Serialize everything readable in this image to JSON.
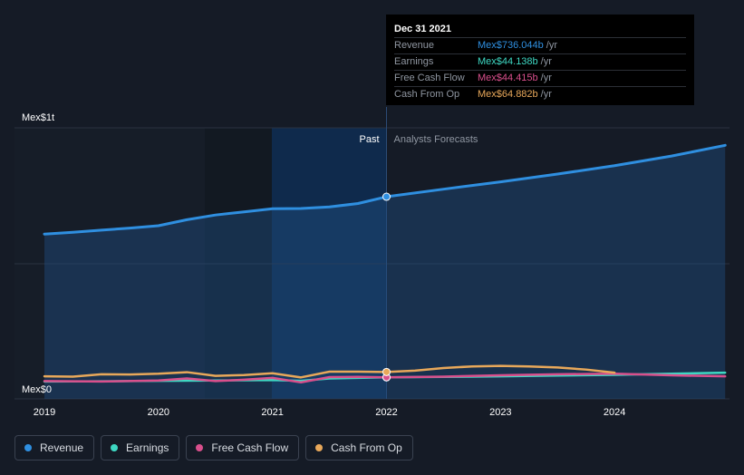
{
  "chart_data": {
    "type": "line",
    "y_top_label": "Mex$1t",
    "y_bottom_label": "Mex$0",
    "past_label": "Past",
    "forecast_label": "Analysts Forecasts",
    "x_ticks": [
      "2019",
      "2020",
      "2021",
      "2022",
      "2023",
      "2024"
    ],
    "ylim": [
      0,
      1000
    ],
    "xlim": [
      2019,
      2024.97
    ],
    "divider_x": 2022.0,
    "series": [
      {
        "name": "Revenue",
        "color": "#2f8fe0",
        "x": [
          2019.0,
          2019.25,
          2019.5,
          2019.75,
          2020.0,
          2020.25,
          2020.5,
          2020.75,
          2021.0,
          2021.25,
          2021.5,
          2021.75,
          2022.0,
          2022.5,
          2023.0,
          2023.5,
          2024.0,
          2024.5,
          2024.97
        ],
        "y": [
          593,
          600,
          608,
          616,
          625,
          648,
          666,
          678,
          690,
          691,
          697,
          710,
          736,
          765,
          793,
          823,
          855,
          892,
          933
        ]
      },
      {
        "name": "Earnings",
        "color": "#3ed8c3",
        "x": [
          2019.0,
          2019.5,
          2020.0,
          2020.5,
          2021.0,
          2021.25,
          2021.5,
          2022.0,
          2022.5,
          2023.0,
          2023.5,
          2024.0,
          2024.5,
          2024.97
        ],
        "y": [
          28,
          29,
          31,
          32,
          34,
          31,
          40,
          44.138,
          46,
          48,
          51,
          54,
          58,
          62
        ]
      },
      {
        "name": "Free Cash Flow",
        "color": "#d94f8c",
        "x": [
          2019.0,
          2019.5,
          2020.0,
          2020.25,
          2020.5,
          2020.75,
          2021.0,
          2021.25,
          2021.5,
          2021.75,
          2022.0,
          2022.5,
          2023.0,
          2023.5,
          2024.0,
          2024.5,
          2024.97
        ],
        "y": [
          30,
          28,
          32,
          40,
          30,
          35,
          42,
          25,
          45,
          46,
          44.415,
          47,
          52,
          56,
          58,
          52,
          48
        ]
      },
      {
        "name": "Cash From Op",
        "color": "#e8a85a",
        "x": [
          2019.0,
          2019.25,
          2019.5,
          2019.75,
          2020.0,
          2020.25,
          2020.5,
          2020.75,
          2021.0,
          2021.25,
          2021.5,
          2021.75,
          2022.0,
          2022.25,
          2022.5,
          2022.75,
          2023.0,
          2023.25,
          2023.5,
          2023.75,
          2024.0
        ],
        "y": [
          48,
          47,
          56,
          55,
          58,
          64,
          50,
          53,
          60,
          44,
          66,
          66,
          64.882,
          70,
          80,
          86,
          88,
          86,
          82,
          74,
          62
        ]
      }
    ]
  },
  "tooltip": {
    "date": "Dec 31 2021",
    "rows": [
      {
        "label": "Revenue",
        "value": "Mex$736.044b",
        "unit": "/yr",
        "color": "#2f8fe0"
      },
      {
        "label": "Earnings",
        "value": "Mex$44.138b",
        "unit": "/yr",
        "color": "#3ed8c3"
      },
      {
        "label": "Free Cash Flow",
        "value": "Mex$44.415b",
        "unit": "/yr",
        "color": "#d94f8c"
      },
      {
        "label": "Cash From Op",
        "value": "Mex$64.882b",
        "unit": "/yr",
        "color": "#e8a85a"
      }
    ]
  },
  "legend": [
    {
      "label": "Revenue",
      "color": "#2f8fe0"
    },
    {
      "label": "Earnings",
      "color": "#3ed8c3"
    },
    {
      "label": "Free Cash Flow",
      "color": "#d94f8c"
    },
    {
      "label": "Cash From Op",
      "color": "#e8a85a"
    }
  ]
}
